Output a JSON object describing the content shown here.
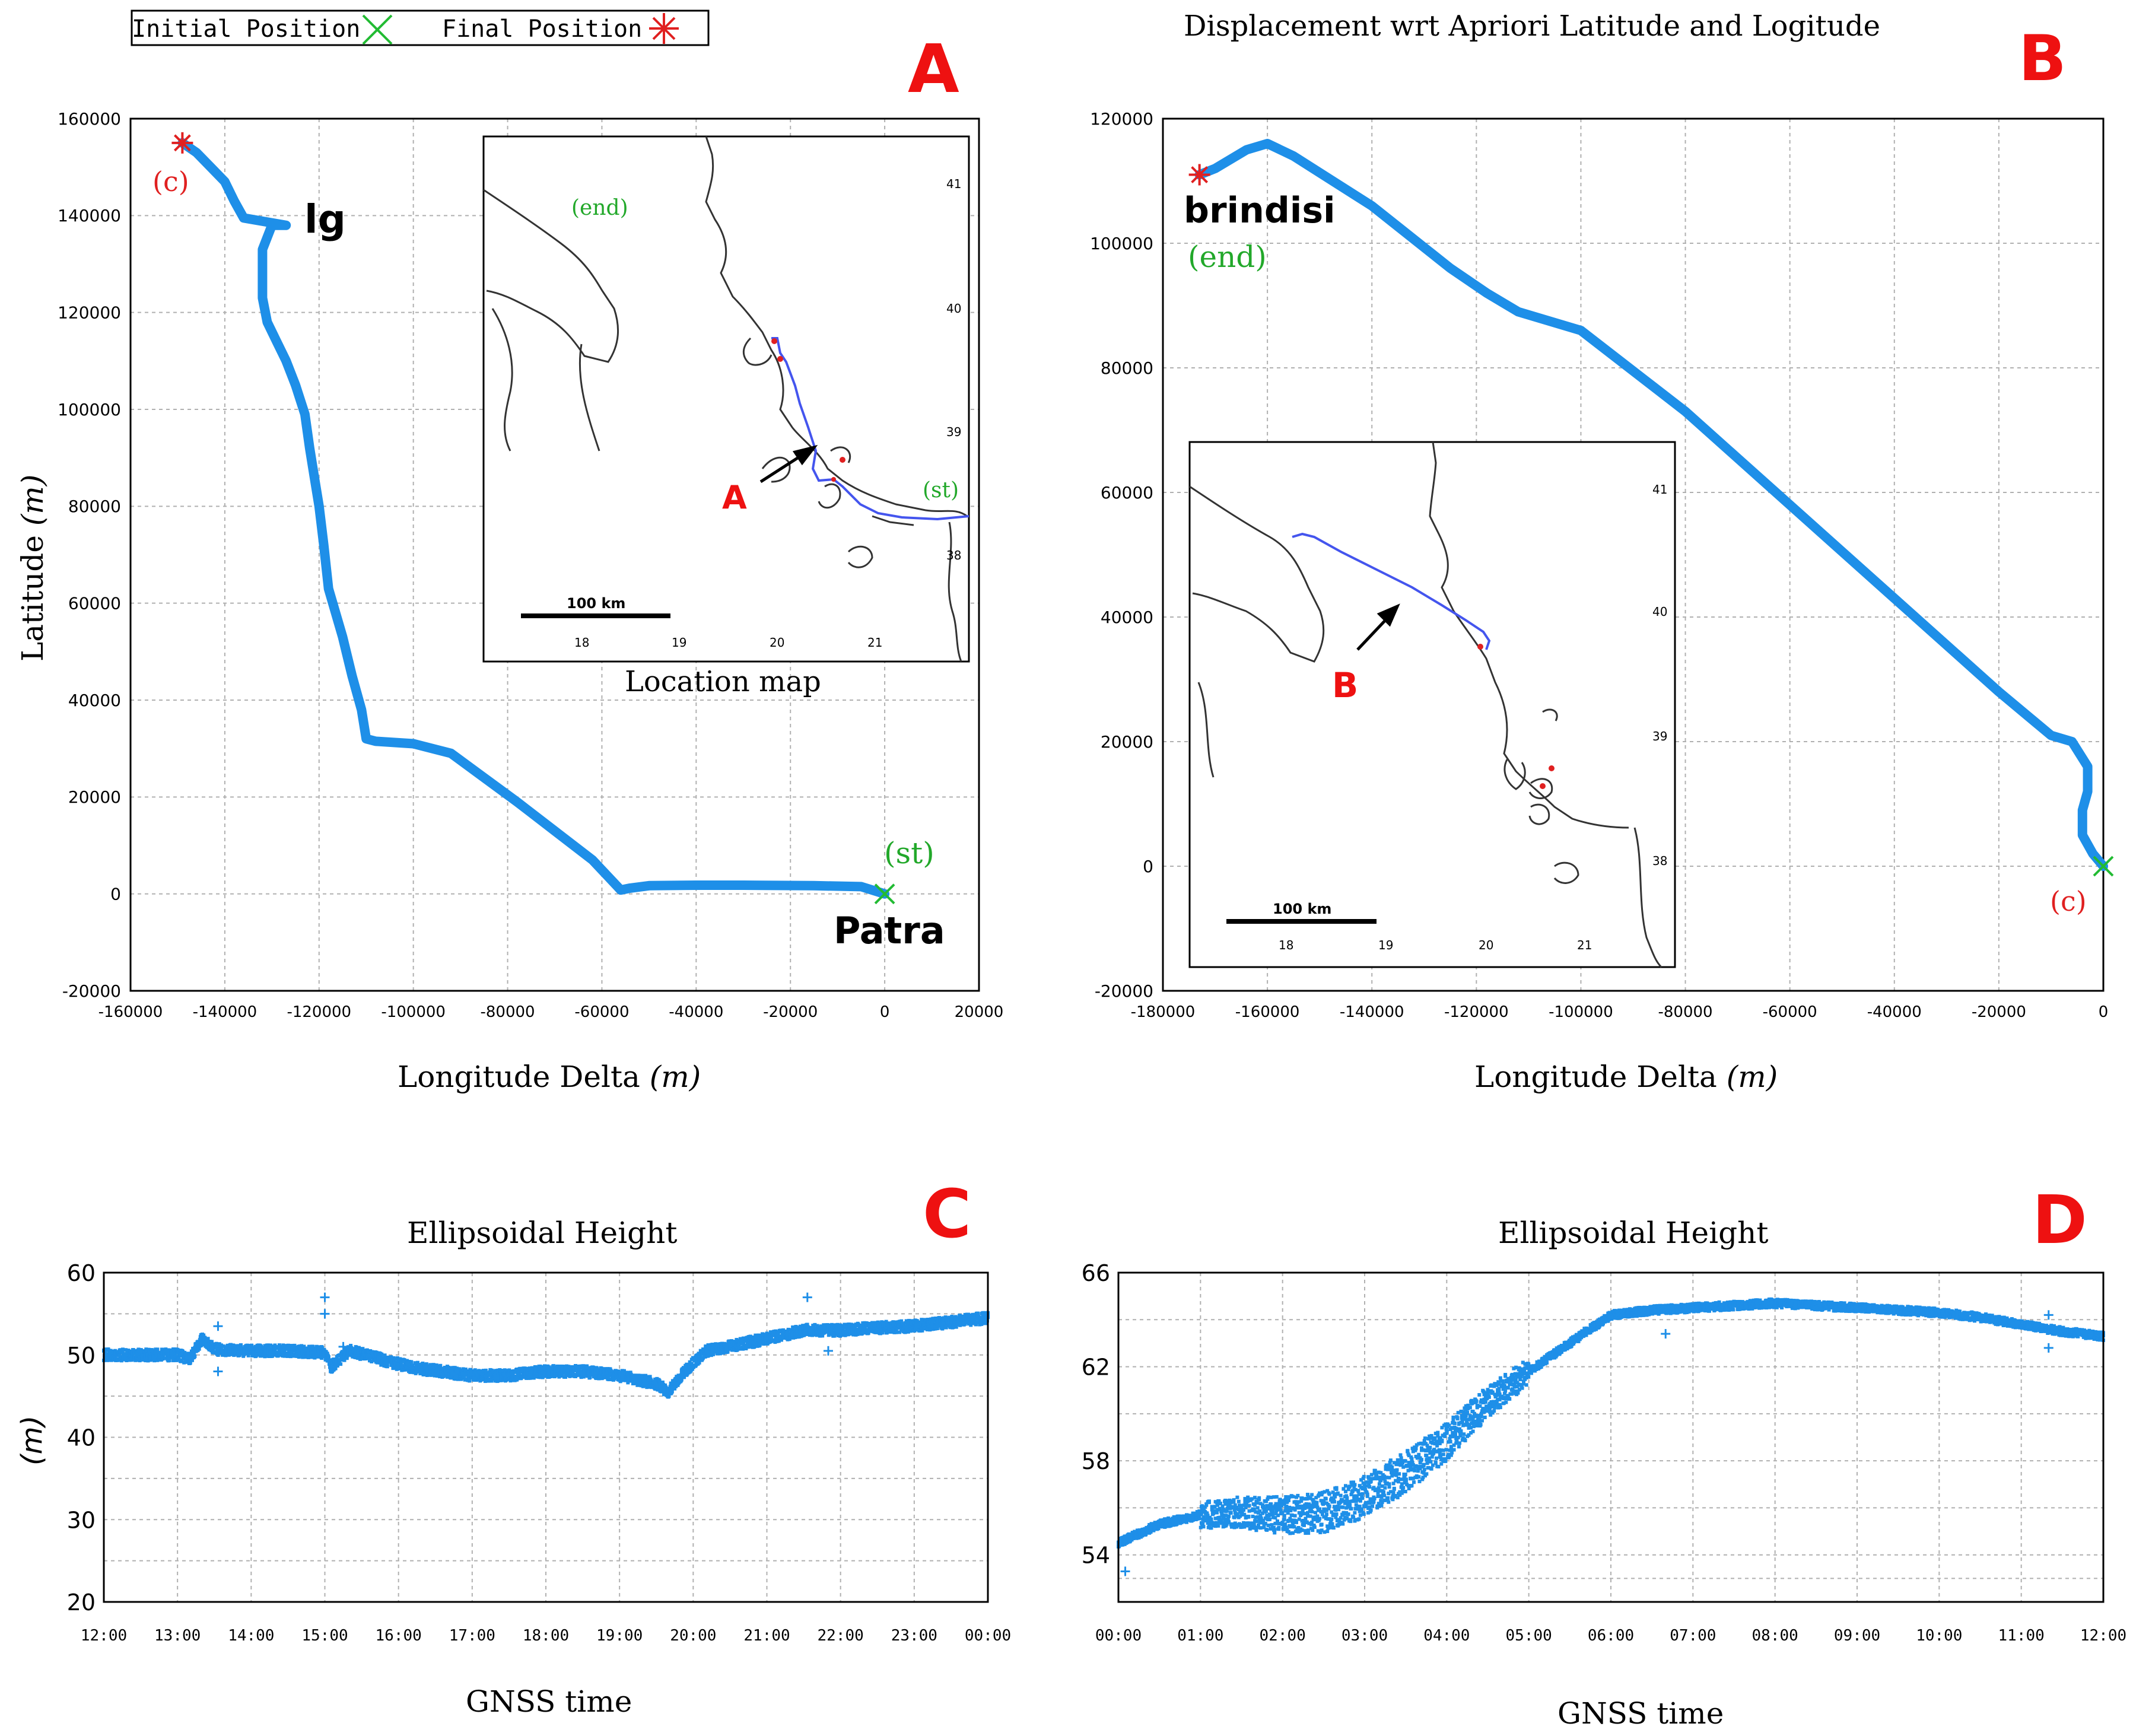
{
  "legend": {
    "initial_label": "Initial Position",
    "final_label": "Final Position",
    "initial_color": "#22bb33",
    "final_color": "#e02020"
  },
  "colors": {
    "series": "#1e8fe8",
    "panel_letter": "#ee1111",
    "green_text": "#22a82a",
    "red_text": "#e02020",
    "route_line": "#4455ee",
    "grid": "#b0b0b0"
  },
  "chart_data": [
    {
      "id": "A",
      "type": "line",
      "panel_letter": "A",
      "title": "",
      "xlabel": "Longitude Delta",
      "xlabel_unit": "(m)",
      "ylabel": "Latitude",
      "ylabel_unit": "(m)",
      "xlim": [
        -160000,
        20000
      ],
      "ylim": [
        -20000,
        160000
      ],
      "xticks": [
        -160000,
        -140000,
        -120000,
        -100000,
        -80000,
        -60000,
        -40000,
        -20000,
        0,
        20000
      ],
      "yticks": [
        -20000,
        0,
        20000,
        40000,
        60000,
        80000,
        100000,
        120000,
        140000,
        160000
      ],
      "grid": true,
      "series": [
        {
          "x": [
            0,
            -5000,
            -15000,
            -30000,
            -40000,
            -50000,
            -54000,
            -56000,
            -62000,
            -70000,
            -78000,
            -85000,
            -92000,
            -100000,
            -108000,
            -110000,
            -111000,
            -113000,
            -115000,
            -118000,
            -119000,
            -120000,
            -121000,
            -122000,
            -123000,
            -125000,
            -127000,
            -129000,
            -131000,
            -132000,
            -132000,
            -130000,
            -127000,
            -133000,
            -136000,
            -138000,
            -140000,
            -143000,
            -146000,
            -149000
          ],
          "y": [
            0,
            1500,
            1700,
            1800,
            1800,
            1700,
            1200,
            800,
            7000,
            13000,
            19000,
            24000,
            29000,
            31000,
            31500,
            32000,
            38000,
            45000,
            53000,
            63000,
            72000,
            80000,
            86000,
            92000,
            99000,
            105000,
            110000,
            114000,
            118000,
            123000,
            133000,
            138000,
            138000,
            139000,
            139500,
            143000,
            147000,
            150000,
            153000,
            155000
          ]
        }
      ],
      "start_marker": {
        "x": 0,
        "y": 0
      },
      "end_marker": {
        "x": -149000,
        "y": 155000
      },
      "annotations": {
        "c": "(c)",
        "lg": "lg",
        "st": "(st)",
        "patra": "Patra"
      }
    },
    {
      "id": "B",
      "type": "line",
      "panel_letter": "B",
      "title": "Displacement wrt Apriori Latitude and Logitude",
      "xlabel": "Longitude Delta",
      "xlabel_unit": "(m)",
      "ylabel": "",
      "xlim": [
        -180000,
        0
      ],
      "ylim": [
        -20000,
        120000
      ],
      "xticks": [
        -180000,
        -160000,
        -140000,
        -120000,
        -100000,
        -80000,
        -60000,
        -40000,
        -20000,
        0
      ],
      "yticks": [
        -20000,
        0,
        20000,
        40000,
        60000,
        80000,
        100000,
        120000
      ],
      "grid": true,
      "series": [
        {
          "x": [
            0,
            -2000,
            -4000,
            -4000,
            -3000,
            -3000,
            -6000,
            -10000,
            -20000,
            -40000,
            -60000,
            -80000,
            -100000,
            -108000,
            -112000,
            -118000,
            -125000,
            -140000,
            -155000,
            -160000,
            -164000,
            -168000,
            -170000,
            -173000
          ],
          "y": [
            0,
            2000,
            5000,
            9000,
            12000,
            16000,
            20000,
            21000,
            28000,
            43000,
            58000,
            73000,
            86000,
            88000,
            89000,
            92000,
            96000,
            106000,
            114000,
            116000,
            115000,
            113000,
            112000,
            111000
          ]
        }
      ],
      "start_marker": {
        "x": 0,
        "y": 0
      },
      "end_marker": {
        "x": -173000,
        "y": 111000
      },
      "annotations": {
        "brindisi": "brindisi",
        "end": "(end)",
        "c": "(c)"
      }
    },
    {
      "id": "C",
      "type": "scatter",
      "panel_letter": "C",
      "title": "Ellipsoidal Height",
      "xlabel": "GNSS time",
      "ylabel": "(m)",
      "ylim": [
        20,
        60
      ],
      "yticks": [
        20,
        30,
        40,
        50,
        60
      ],
      "xlim": [
        "12:00",
        "00:00"
      ],
      "xticks": [
        "12:00",
        "13:00",
        "14:00",
        "15:00",
        "16:00",
        "17:00",
        "18:00",
        "19:00",
        "20:00",
        "21:00",
        "22:00",
        "23:00",
        "00:00"
      ],
      "grid": true,
      "series": [
        {
          "x": [
            "12:00",
            "12:30",
            "13:00",
            "13:10",
            "13:20",
            "13:30",
            "14:00",
            "14:30",
            "15:00",
            "15:05",
            "15:20",
            "15:45",
            "16:10",
            "17:00",
            "17:30",
            "18:00",
            "18:30",
            "19:00",
            "19:30",
            "19:40",
            "19:50",
            "20:10",
            "20:30",
            "21:00",
            "21:15",
            "21:30",
            "22:00",
            "22:30",
            "23:00",
            "23:30",
            "00:00"
          ],
          "y": [
            50,
            50,
            50,
            49.5,
            52,
            50.7,
            50.5,
            50.5,
            50.3,
            48.5,
            50.5,
            49.5,
            48.5,
            47.5,
            47.5,
            48,
            48,
            47.5,
            46.5,
            45.5,
            47.5,
            50.5,
            51,
            52,
            52.5,
            53,
            53,
            53.3,
            53.5,
            54,
            54.5
          ]
        }
      ],
      "outliers": {
        "x": [
          "13:33",
          "13:33",
          "15:00",
          "15:00",
          "15:15",
          "21:33",
          "21:50"
        ],
        "y": [
          53.5,
          48,
          57,
          55,
          51,
          57,
          50.5
        ]
      }
    },
    {
      "id": "D",
      "type": "scatter",
      "panel_letter": "D",
      "title": "Ellipsoidal Height",
      "xlabel": "GNSS time",
      "ylabel": "",
      "ylim": [
        52,
        66
      ],
      "yticks": [
        54,
        58,
        62,
        66
      ],
      "xlim": [
        "00:00",
        "12:00"
      ],
      "xticks": [
        "00:00",
        "01:00",
        "02:00",
        "03:00",
        "04:00",
        "05:00",
        "06:00",
        "07:00",
        "08:00",
        "09:00",
        "10:00",
        "11:00",
        "12:00"
      ],
      "grid": true,
      "series": [
        {
          "x": [
            "00:00",
            "00:30",
            "01:00",
            "01:30",
            "02:00",
            "02:30",
            "03:00",
            "03:30",
            "04:00",
            "04:30",
            "05:00",
            "05:30",
            "06:00",
            "06:15",
            "06:30",
            "07:00",
            "07:30",
            "08:00",
            "08:30",
            "09:00",
            "09:30",
            "10:00",
            "10:30",
            "11:00",
            "11:30",
            "12:00"
          ],
          "y": [
            54.5,
            55.3,
            55.7,
            55.8,
            55.7,
            55.8,
            56.5,
            57.5,
            58.8,
            60.5,
            61.8,
            63,
            64.2,
            64.3,
            64.4,
            64.5,
            64.6,
            64.7,
            64.6,
            64.5,
            64.4,
            64.3,
            64.1,
            63.8,
            63.5,
            63.3
          ]
        }
      ],
      "outliers": {
        "x": [
          "00:05",
          "05:40",
          "06:40",
          "11:20",
          "11:20"
        ],
        "y": [
          53.3,
          63.5,
          63.4,
          62.8,
          64.2
        ]
      }
    }
  ],
  "inset_A": {
    "caption": "Location map",
    "scale": "100 km",
    "lon_ticks": [
      "18",
      "19",
      "20",
      "21"
    ],
    "lat_ticks": [
      "41",
      "40",
      "39",
      "38"
    ],
    "end_label": "(end)",
    "st_label": "(st)",
    "arrow_label": "A"
  },
  "inset_B": {
    "scale": "100 km",
    "lon_ticks": [
      "18",
      "19",
      "20",
      "21"
    ],
    "lat_ticks": [
      "41",
      "40",
      "39",
      "38"
    ],
    "arrow_label": "B"
  }
}
